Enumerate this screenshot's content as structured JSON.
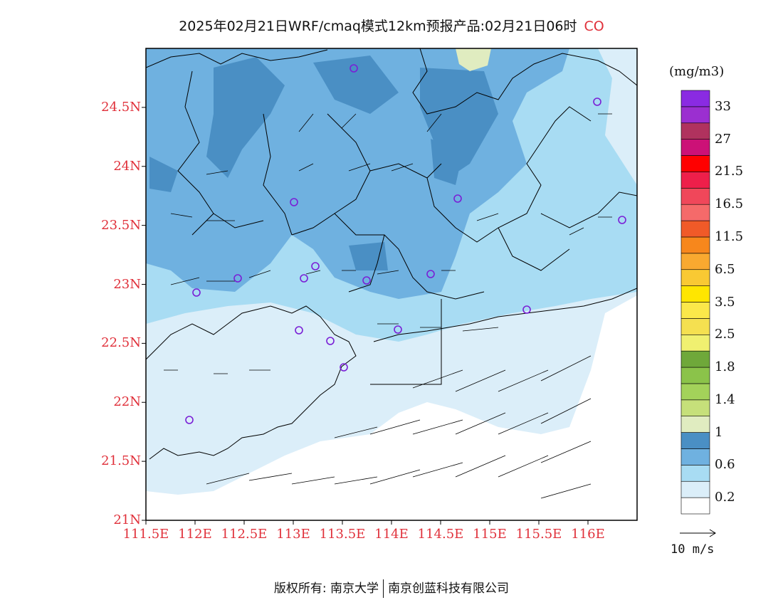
{
  "title": {
    "main": "2025年02月21日WRF/cmaq模式12km预报产品:02月21日06时",
    "variable": "CO"
  },
  "colors": {
    "label_red": "#e0303a",
    "field_level_0": "#ffffff",
    "field_level_1": "#dbeef9",
    "field_level_2": "#a8dcf3",
    "field_level_3": "#6fb1e0",
    "field_level_4": "#4a8fc4",
    "field_level_5": "#e0ecc0",
    "station_marker": "#7a1fd6"
  },
  "axes": {
    "y_ticks": [
      "24.5N",
      "24N",
      "23.5N",
      "23N",
      "22.5N",
      "22N",
      "21.5N",
      "21N"
    ],
    "x_ticks": [
      "111.5E",
      "112E",
      "112.5E",
      "113E",
      "113.5E",
      "114E",
      "114.5E",
      "115E",
      "115.5E",
      "116E"
    ],
    "lon_range": [
      111.5,
      116.5
    ],
    "lat_range": [
      21.0,
      25.0
    ]
  },
  "colorbar": {
    "unit": "(mg/m3)",
    "labels": [
      "0.2",
      "0.6",
      "1",
      "1.4",
      "1.8",
      "2.5",
      "3.5",
      "6.5",
      "11.5",
      "16.5",
      "21.5",
      "27",
      "33"
    ],
    "colors": [
      "#ffffff",
      "#dbeef9",
      "#a8dcf3",
      "#6fb1e0",
      "#4a8fc4",
      "#e0ecc0",
      "#c6e07a",
      "#a3d25a",
      "#8bc34a",
      "#6fa83a",
      "#f0f070",
      "#f5e050",
      "#fbe84a",
      "#ffe600",
      "#f9c933",
      "#f9a930",
      "#f7871c",
      "#f05a28",
      "#f56a6a",
      "#f0475a",
      "#ee1f4a",
      "#ff0000",
      "#cc1177",
      "#b0325e",
      "#9b2fd0",
      "#8a2be2"
    ]
  },
  "vector_key": {
    "label": "10  m/s"
  },
  "footer": {
    "left": "版权所有: 南京大学",
    "right": "南京创蓝科技有限公司"
  }
}
